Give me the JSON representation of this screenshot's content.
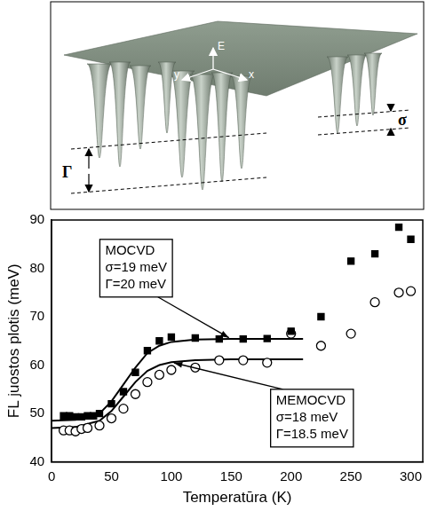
{
  "illustration": {
    "axes": [
      "E",
      "y",
      "x"
    ],
    "sigma": "σ",
    "gamma": "Γ"
  },
  "chart_data": {
    "type": "scatter",
    "x_label": "Temperatūra (K)",
    "y_label": "FL juostos plotis (meV)",
    "xlim": [
      0,
      310
    ],
    "xticks": [
      0,
      50,
      100,
      150,
      200,
      250,
      300
    ],
    "ylim": [
      40,
      90
    ],
    "yticks": [
      40,
      50,
      60,
      70,
      80,
      90
    ],
    "grid": false,
    "series": [
      {
        "name": "MOCVD",
        "type": "scatter",
        "marker": "square",
        "color": "#000000",
        "x": [
          10,
          15,
          20,
          25,
          30,
          35,
          40,
          50,
          60,
          70,
          80,
          90,
          100,
          120,
          140,
          160,
          180,
          200,
          225,
          250,
          270,
          290,
          300
        ],
        "values": [
          49.5,
          49.5,
          49.3,
          49.3,
          49.5,
          49.5,
          50,
          52,
          54.5,
          58.5,
          63,
          65,
          65.8,
          65.6,
          65.4,
          65.4,
          65.5,
          67,
          70,
          81.5,
          83,
          88.5,
          86
        ]
      },
      {
        "name": "MEMOCVD",
        "type": "scatter",
        "marker": "open_circle",
        "color": "#000000",
        "x": [
          10,
          15,
          20,
          25,
          30,
          40,
          50,
          60,
          70,
          80,
          90,
          100,
          120,
          140,
          160,
          180,
          200,
          225,
          250,
          270,
          290,
          300
        ],
        "values": [
          46.5,
          46.5,
          46.3,
          46.8,
          47,
          47.5,
          49,
          51,
          54,
          56.5,
          58,
          59,
          59.5,
          61,
          61,
          60.5,
          66.5,
          64,
          66.5,
          73,
          75,
          75.3
        ]
      },
      {
        "type": "line",
        "line_style": "solid",
        "color": "#000000",
        "x": [
          0,
          20,
          40,
          50,
          60,
          70,
          80,
          90,
          100,
          120,
          150,
          180,
          210
        ],
        "values": [
          48.5,
          48.7,
          50,
          52.5,
          56,
          59.5,
          62.5,
          64,
          64.8,
          65.3,
          65.4,
          65.4,
          65.4
        ]
      },
      {
        "type": "line",
        "line_style": "solid",
        "color": "#000000",
        "x": [
          0,
          20,
          40,
          50,
          60,
          70,
          80,
          90,
          100,
          120,
          150,
          180,
          210
        ],
        "values": [
          47,
          47.2,
          48.5,
          50.5,
          53.5,
          56.5,
          58.8,
          60,
          60.6,
          61,
          61.2,
          61.2,
          61.2
        ]
      }
    ],
    "annotations": [
      {
        "lines": [
          "MOCVD",
          "σ=19 meV",
          "Γ=20 meV"
        ]
      },
      {
        "lines": [
          "MEMOCVD",
          "σ=18 meV",
          "Γ=18.5 meV"
        ]
      }
    ]
  }
}
